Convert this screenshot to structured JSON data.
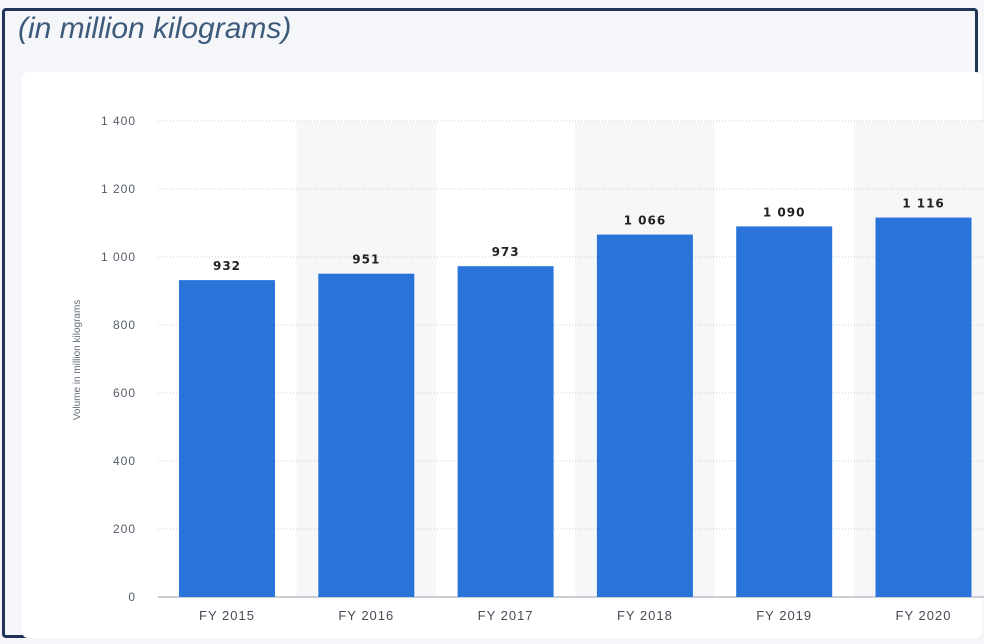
{
  "chart_data": {
    "type": "bar",
    "title": "(in million kilograms)",
    "ylabel": "Volume in million kilograms",
    "xlabel": "",
    "categories": [
      "FY 2015",
      "FY 2016",
      "FY 2017",
      "FY 2018",
      "FY 2019",
      "FY 2020"
    ],
    "values": [
      932,
      951,
      973,
      1066,
      1090,
      1116
    ],
    "value_labels": [
      "932",
      "951",
      "973",
      "1 066",
      "1 090",
      "1 116"
    ],
    "ylim": [
      0,
      1400
    ],
    "yticks": [
      0,
      200,
      400,
      600,
      800,
      1000,
      1200,
      1400
    ],
    "ytick_labels": [
      "0",
      "200",
      "400",
      "600",
      "800",
      "1 000",
      "1 200",
      "1 400"
    ],
    "grid": true,
    "colors": {
      "bar": "#2a74d9",
      "band": "#f6f7f9",
      "grid": "#c9cdd3",
      "title": "#3e5a7a",
      "frame": "#1f3456"
    }
  }
}
